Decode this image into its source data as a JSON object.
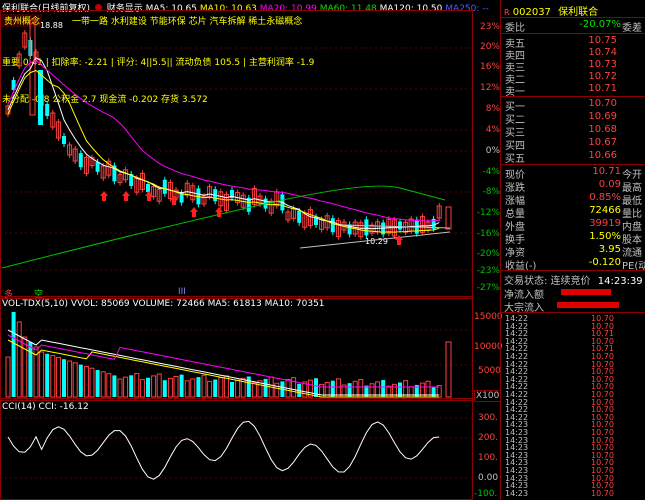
{
  "header": {
    "title": "保利联合(日线前复权)",
    "finance_label": "财务显示",
    "ma5": "MA5: 10.65",
    "ma10": "MA10: 10.63",
    "ma20": "MA20: 10.99",
    "ma60": "MA60: 11.48",
    "ma120": "MA120: 10.50",
    "ma250": "MA250: --"
  },
  "overlay": {
    "concept_tag": "贵州概念",
    "peak_price": "18.88",
    "concepts": "一带一路 水利建设 节能环保 芯片 汽车拆解 稀土永磁概念",
    "line1": "重要 0.41 | 扣除率: -2.21 | 评分: 4||5.5|| 流动负债 105.5 | 主营利润率 -1.9",
    "line2": "未分配 -0.8 公积金 2.7 现金流 -0.202 存货 3.572",
    "low_price": "10.29",
    "bottom_labels": [
      "多",
      "空",
      "III"
    ]
  },
  "main_scale": {
    "right": [
      "23%",
      "20%",
      "16%",
      "12%",
      "8%",
      "4%",
      "0%",
      "-4%",
      "-8%",
      "-12%",
      "-16%",
      "-20%",
      "-23%",
      "-27%"
    ]
  },
  "volume": {
    "header": "VOL-TDX(5,10) VVOL: 85069 VOLUME: 72466 MA5: 61813 MA10: 70351",
    "scale": [
      "15000",
      "10000",
      "5000",
      "X100"
    ]
  },
  "cci": {
    "header": "CCI(14) CCI: -16.12",
    "scale": [
      "300.",
      "200.",
      "100.",
      "0.00",
      "-100."
    ]
  },
  "quote": {
    "code_marker": "R",
    "code": "002037",
    "name": "保利联合",
    "webi_label": "委比",
    "webi_value": "-20.07%",
    "weicha_label": "委差",
    "weicha_value": "-",
    "sells": [
      {
        "label": "卖五",
        "price": "10.75",
        "vol": ""
      },
      {
        "label": "卖四",
        "price": "10.74",
        "vol": ""
      },
      {
        "label": "卖三",
        "price": "10.73",
        "vol": ""
      },
      {
        "label": "卖二",
        "price": "10.72",
        "vol": ""
      },
      {
        "label": "卖一",
        "price": "10.71",
        "vol": ""
      }
    ],
    "buys": [
      {
        "label": "买一",
        "price": "10.70",
        "vol": ""
      },
      {
        "label": "买二",
        "price": "10.69",
        "vol": ""
      },
      {
        "label": "买三",
        "price": "10.68",
        "vol": ""
      },
      {
        "label": "买四",
        "price": "10.67",
        "vol": ""
      },
      {
        "label": "买五",
        "price": "10.66",
        "vol": ""
      }
    ],
    "stats": [
      {
        "k1": "现价",
        "v1": "10.71",
        "c": "red",
        "k2": "今开"
      },
      {
        "k1": "涨跌",
        "v1": "0.09",
        "c": "red",
        "k2": "最高"
      },
      {
        "k1": "涨幅",
        "v1": "0.85%",
        "c": "red",
        "k2": "最低"
      },
      {
        "k1": "总量",
        "v1": "72466",
        "c": "yellow",
        "k2": "量比"
      },
      {
        "k1": "外盘",
        "v1": "39919",
        "c": "red",
        "k2": "内盘"
      },
      {
        "k1": "换手",
        "v1": "1.50%",
        "c": "yellow",
        "k2": "股本"
      },
      {
        "k1": "净资",
        "v1": "3.95",
        "c": "yellow",
        "k2": "流通"
      },
      {
        "k1": "收益(-)",
        "v1": "-0.120",
        "c": "yellow",
        "k2": "PE(动)"
      }
    ],
    "status_label": "交易状态: 连续竞价",
    "status_time": "14:23:39",
    "net_inflow": "净流入额",
    "block_inflow": "大宗流入",
    "ticks": [
      {
        "t": "14:22",
        "p": "10.70"
      },
      {
        "t": "14:22",
        "p": "10.70"
      },
      {
        "t": "14:22",
        "p": "10.71"
      },
      {
        "t": "14:22",
        "p": "10.70"
      },
      {
        "t": "14:22",
        "p": "10.71"
      },
      {
        "t": "14:22",
        "p": "10.70"
      },
      {
        "t": "14:22",
        "p": "10.70"
      },
      {
        "t": "14:22",
        "p": "10.70"
      },
      {
        "t": "14:22",
        "p": "10.70"
      },
      {
        "t": "14:22",
        "p": "10.70"
      },
      {
        "t": "14:22",
        "p": "10.70"
      },
      {
        "t": "14:22",
        "p": "10.70"
      },
      {
        "t": "14:22",
        "p": "10.70"
      },
      {
        "t": "14:22",
        "p": "10.70"
      },
      {
        "t": "14:23",
        "p": "10.70"
      },
      {
        "t": "14:23",
        "p": "10.70"
      },
      {
        "t": "14:23",
        "p": "10.70"
      },
      {
        "t": "14:23",
        "p": "10.70"
      },
      {
        "t": "14:23",
        "p": "10.70"
      },
      {
        "t": "14:23",
        "p": "10.70"
      },
      {
        "t": "14:23",
        "p": "10.70"
      },
      {
        "t": "14:23",
        "p": "10.70"
      },
      {
        "t": "14:23",
        "p": "10.70"
      },
      {
        "t": "14:23",
        "p": "10.70"
      }
    ]
  },
  "colors": {
    "up": "#ff4040",
    "down": "#00ffff",
    "ma5": "#ffffff",
    "ma10": "#ffff00",
    "ma20": "#ff00ff",
    "ma60": "#00c000"
  }
}
